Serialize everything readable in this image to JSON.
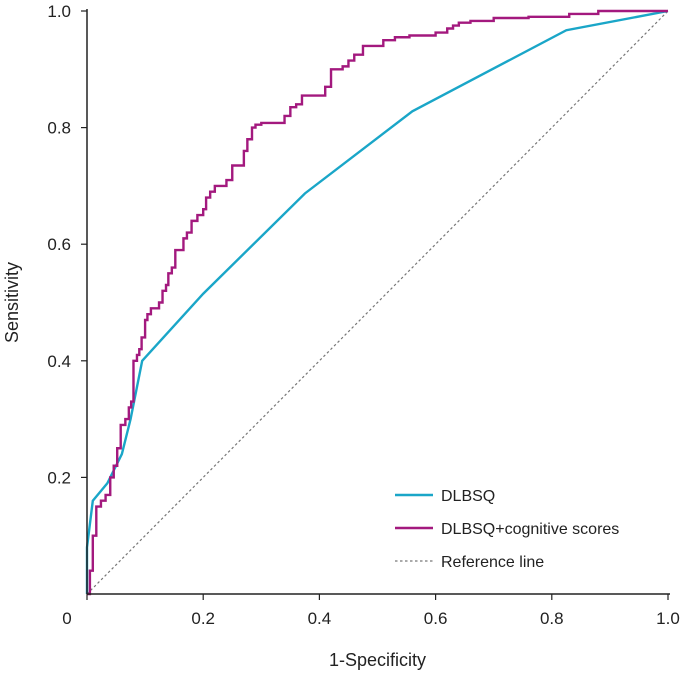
{
  "chart_data": {
    "type": "line",
    "xlabel": "1-Specificity",
    "ylabel": "Sensitivity",
    "xlim": [
      0,
      1
    ],
    "ylim": [
      0,
      1
    ],
    "x_ticks": [
      "0",
      "0.2",
      "0.4",
      "0.6",
      "0.8",
      "1.0"
    ],
    "y_ticks": [
      "0.2",
      "0.4",
      "0.6",
      "0.8",
      "1.0"
    ],
    "legend_position": "bottom-right",
    "series": [
      {
        "name": "DLBSQ",
        "color": "#1AA6C8",
        "style": "solid",
        "points": [
          [
            0,
            0
          ],
          [
            0,
            0.08
          ],
          [
            0.01,
            0.16
          ],
          [
            0.035,
            0.19
          ],
          [
            0.06,
            0.24
          ],
          [
            0.075,
            0.3
          ],
          [
            0.095,
            0.4
          ],
          [
            0.2,
            0.515
          ],
          [
            0.375,
            0.687
          ],
          [
            0.56,
            0.828
          ],
          [
            0.825,
            0.967
          ],
          [
            1,
            1
          ]
        ]
      },
      {
        "name": "DLBSQ+cognitive scores",
        "color": "#A3197E",
        "style": "step",
        "points": [
          [
            0,
            0
          ],
          [
            0.005,
            0
          ],
          [
            0.005,
            0.04
          ],
          [
            0.01,
            0.04
          ],
          [
            0.01,
            0.1
          ],
          [
            0.016,
            0.1
          ],
          [
            0.016,
            0.15
          ],
          [
            0.024,
            0.15
          ],
          [
            0.024,
            0.16
          ],
          [
            0.032,
            0.16
          ],
          [
            0.032,
            0.17
          ],
          [
            0.04,
            0.17
          ],
          [
            0.04,
            0.2
          ],
          [
            0.046,
            0.2
          ],
          [
            0.046,
            0.22
          ],
          [
            0.052,
            0.22
          ],
          [
            0.052,
            0.25
          ],
          [
            0.058,
            0.25
          ],
          [
            0.058,
            0.29
          ],
          [
            0.066,
            0.29
          ],
          [
            0.066,
            0.3
          ],
          [
            0.072,
            0.3
          ],
          [
            0.072,
            0.32
          ],
          [
            0.076,
            0.32
          ],
          [
            0.076,
            0.33
          ],
          [
            0.08,
            0.33
          ],
          [
            0.08,
            0.4
          ],
          [
            0.086,
            0.4
          ],
          [
            0.086,
            0.41
          ],
          [
            0.09,
            0.41
          ],
          [
            0.09,
            0.42
          ],
          [
            0.094,
            0.42
          ],
          [
            0.094,
            0.44
          ],
          [
            0.1,
            0.44
          ],
          [
            0.1,
            0.47
          ],
          [
            0.104,
            0.47
          ],
          [
            0.104,
            0.48
          ],
          [
            0.11,
            0.48
          ],
          [
            0.11,
            0.49
          ],
          [
            0.116,
            0.49
          ],
          [
            0.116,
            0.49
          ],
          [
            0.124,
            0.49
          ],
          [
            0.124,
            0.5
          ],
          [
            0.13,
            0.5
          ],
          [
            0.13,
            0.52
          ],
          [
            0.136,
            0.52
          ],
          [
            0.136,
            0.53
          ],
          [
            0.14,
            0.53
          ],
          [
            0.14,
            0.55
          ],
          [
            0.146,
            0.55
          ],
          [
            0.146,
            0.56
          ],
          [
            0.152,
            0.56
          ],
          [
            0.152,
            0.59
          ],
          [
            0.166,
            0.59
          ],
          [
            0.166,
            0.61
          ],
          [
            0.172,
            0.61
          ],
          [
            0.172,
            0.62
          ],
          [
            0.18,
            0.62
          ],
          [
            0.18,
            0.64
          ],
          [
            0.19,
            0.64
          ],
          [
            0.19,
            0.65
          ],
          [
            0.2,
            0.65
          ],
          [
            0.2,
            0.66
          ],
          [
            0.205,
            0.66
          ],
          [
            0.205,
            0.68
          ],
          [
            0.212,
            0.68
          ],
          [
            0.212,
            0.69
          ],
          [
            0.22,
            0.69
          ],
          [
            0.22,
            0.7
          ],
          [
            0.24,
            0.7
          ],
          [
            0.24,
            0.71
          ],
          [
            0.25,
            0.71
          ],
          [
            0.25,
            0.735
          ],
          [
            0.27,
            0.735
          ],
          [
            0.27,
            0.76
          ],
          [
            0.276,
            0.76
          ],
          [
            0.276,
            0.78
          ],
          [
            0.284,
            0.78
          ],
          [
            0.284,
            0.8
          ],
          [
            0.29,
            0.8
          ],
          [
            0.29,
            0.805
          ],
          [
            0.3,
            0.805
          ],
          [
            0.3,
            0.808
          ],
          [
            0.34,
            0.808
          ],
          [
            0.34,
            0.82
          ],
          [
            0.35,
            0.82
          ],
          [
            0.35,
            0.835
          ],
          [
            0.36,
            0.835
          ],
          [
            0.36,
            0.84
          ],
          [
            0.37,
            0.84
          ],
          [
            0.37,
            0.855
          ],
          [
            0.41,
            0.855
          ],
          [
            0.41,
            0.87
          ],
          [
            0.42,
            0.87
          ],
          [
            0.42,
            0.9
          ],
          [
            0.44,
            0.9
          ],
          [
            0.44,
            0.905
          ],
          [
            0.45,
            0.905
          ],
          [
            0.45,
            0.915
          ],
          [
            0.46,
            0.915
          ],
          [
            0.46,
            0.925
          ],
          [
            0.475,
            0.925
          ],
          [
            0.475,
            0.94
          ],
          [
            0.51,
            0.94
          ],
          [
            0.51,
            0.95
          ],
          [
            0.53,
            0.95
          ],
          [
            0.53,
            0.955
          ],
          [
            0.555,
            0.955
          ],
          [
            0.555,
            0.958
          ],
          [
            0.6,
            0.958
          ],
          [
            0.6,
            0.963
          ],
          [
            0.62,
            0.963
          ],
          [
            0.62,
            0.97
          ],
          [
            0.63,
            0.97
          ],
          [
            0.63,
            0.975
          ],
          [
            0.64,
            0.975
          ],
          [
            0.64,
            0.98
          ],
          [
            0.66,
            0.98
          ],
          [
            0.66,
            0.983
          ],
          [
            0.7,
            0.983
          ],
          [
            0.7,
            0.988
          ],
          [
            0.76,
            0.988
          ],
          [
            0.76,
            0.99
          ],
          [
            0.83,
            0.99
          ],
          [
            0.83,
            0.995
          ],
          [
            0.88,
            0.995
          ],
          [
            0.88,
            1
          ],
          [
            1,
            1
          ]
        ]
      },
      {
        "name": "Reference line",
        "color": "#777777",
        "style": "dotted",
        "points": [
          [
            0,
            0
          ],
          [
            1,
            1
          ]
        ]
      }
    ]
  }
}
